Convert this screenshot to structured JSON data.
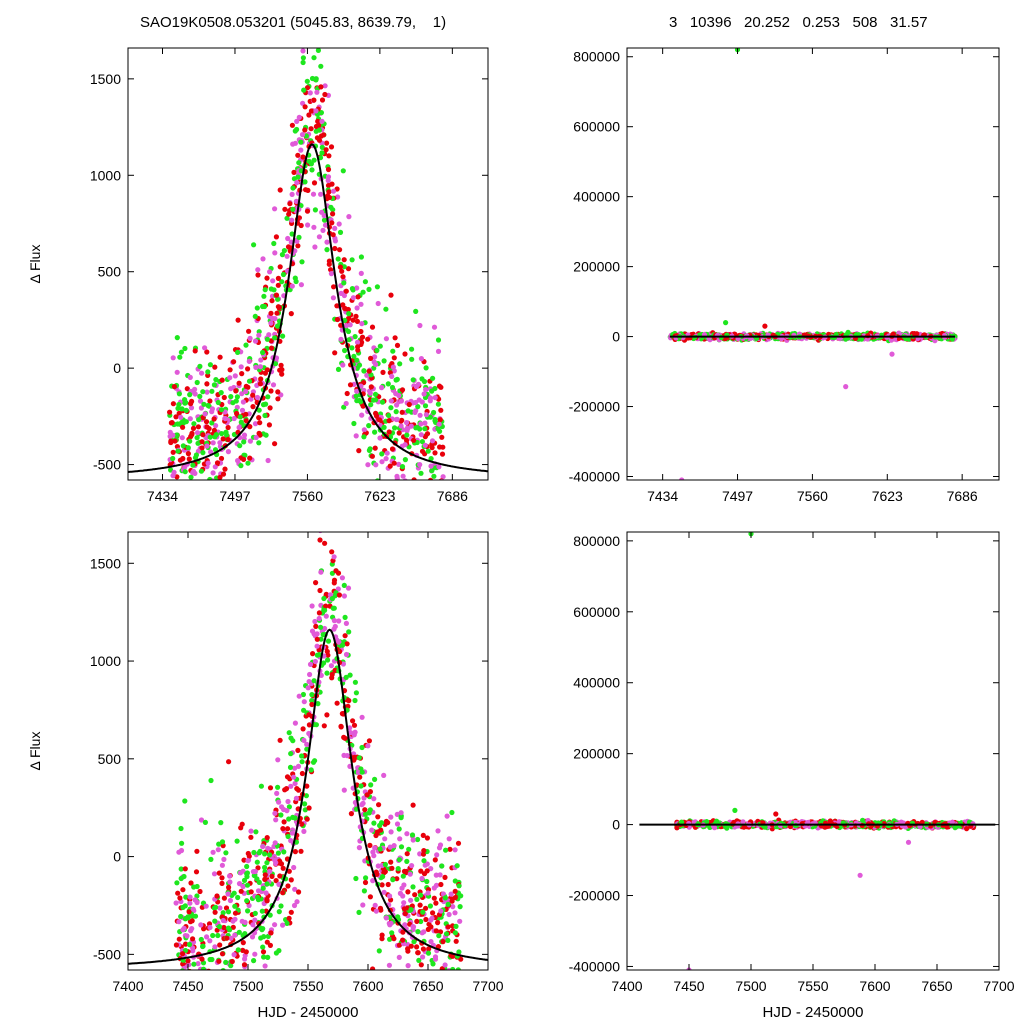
{
  "header": {
    "left_title": "SAO19K0508.053201 (5045.83, 8639.79,    1)",
    "right_title": "3   10396   20.252   0.253   508   31.57"
  },
  "colors": {
    "series_a": "#e8000b",
    "series_b": "#1ee61e",
    "series_c": "#e05ad8",
    "model": "#000000"
  },
  "chart_data": [
    {
      "type": "scatter",
      "ylabel": "Δ Flux",
      "xlabel": "",
      "xlim": [
        7404,
        7717
      ],
      "ylim": [
        -580,
        1660
      ],
      "xticks": [
        7434,
        7497,
        7560,
        7623,
        7686
      ],
      "xticklabels": [
        "7434",
        "7497",
        "7560",
        "7623",
        "7686"
      ],
      "yticks": [
        -500,
        0,
        500,
        1000,
        1500
      ],
      "yticklabels": [
        "-500",
        "0",
        "500",
        "1000",
        "1500"
      ],
      "model": {
        "kind": "lorentzian",
        "t0": 7564,
        "amplitude": 1740,
        "width": 25,
        "baseline": -580
      },
      "scatter": {
        "center": 7564,
        "width": 30,
        "span": [
          7440,
          7678
        ],
        "spread": 230
      }
    },
    {
      "type": "scatter",
      "ylabel": "",
      "xlabel": "",
      "xlim": [
        7404,
        7717
      ],
      "ylim": [
        -410000,
        825000
      ],
      "xticks": [
        7434,
        7497,
        7560,
        7623,
        7686
      ],
      "xticklabels": [
        "7434",
        "7497",
        "7560",
        "7623",
        "7686"
      ],
      "yticks": [
        -400000,
        -200000,
        0,
        200000,
        400000,
        600000,
        800000
      ],
      "yticklabels": [
        "-400000",
        "-200000",
        "0",
        "200000",
        "400000",
        "600000",
        "800000"
      ],
      "model": {
        "kind": "line",
        "y": 0,
        "span": [
          7440,
          7680
        ]
      },
      "outliers": [
        [
          7497,
          820000,
          "b"
        ],
        [
          7450,
          -410000,
          "c"
        ],
        [
          7588,
          -143000,
          "c"
        ],
        [
          7627,
          -50000,
          "c"
        ],
        [
          7487,
          40000,
          "b"
        ],
        [
          7520,
          30000,
          "a"
        ],
        [
          7590,
          12000,
          "b"
        ]
      ],
      "scatter": {
        "span": [
          7440,
          7680
        ],
        "spread": 4000
      }
    },
    {
      "type": "scatter",
      "ylabel": "Δ Flux",
      "xlabel": "HJD - 2450000",
      "xlim": [
        7400,
        7700
      ],
      "ylim": [
        -580,
        1660
      ],
      "xticks": [
        7400,
        7450,
        7500,
        7550,
        7600,
        7650,
        7700
      ],
      "xticklabels": [
        "7400",
        "7450",
        "7500",
        "7550",
        "7600",
        "7650",
        "7700"
      ],
      "yticks": [
        -500,
        0,
        500,
        1000,
        1500
      ],
      "yticklabels": [
        "-500",
        "0",
        "500",
        "1000",
        "1500"
      ],
      "model": {
        "kind": "lorentzian",
        "t0": 7568,
        "amplitude": 1740,
        "width": 23,
        "baseline": -580
      },
      "scatter": {
        "center": 7565,
        "width": 30,
        "span": [
          7440,
          7678
        ],
        "spread": 230
      }
    },
    {
      "type": "scatter",
      "ylabel": "",
      "xlabel": "HJD - 2450000",
      "xlim": [
        7400,
        7700
      ],
      "ylim": [
        -410000,
        825000
      ],
      "xticks": [
        7400,
        7450,
        7500,
        7550,
        7600,
        7650,
        7700
      ],
      "xticklabels": [
        "7400",
        "7450",
        "7500",
        "7550",
        "7600",
        "7650",
        "7700"
      ],
      "yticks": [
        -400000,
        -200000,
        0,
        200000,
        400000,
        600000,
        800000
      ],
      "yticklabels": [
        "-400000",
        "-200000",
        "0",
        "200000",
        "400000",
        "600000",
        "800000"
      ],
      "model": {
        "kind": "line",
        "y": 0,
        "span": [
          7410,
          7697
        ]
      },
      "outliers": [
        [
          7500,
          820000,
          "b"
        ],
        [
          7450,
          -410000,
          "c"
        ],
        [
          7588,
          -143000,
          "c"
        ],
        [
          7627,
          -50000,
          "c"
        ],
        [
          7487,
          40000,
          "b"
        ],
        [
          7520,
          30000,
          "a"
        ],
        [
          7590,
          12000,
          "b"
        ]
      ],
      "scatter": {
        "span": [
          7440,
          7680
        ],
        "spread": 4000
      }
    }
  ]
}
